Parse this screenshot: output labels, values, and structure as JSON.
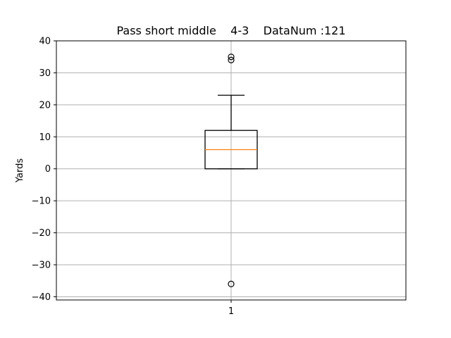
{
  "chart_data": {
    "type": "box",
    "title": "Pass short middle    4-3    DataNum :121",
    "xlabel": "",
    "ylabel": "Yards",
    "ylim": [
      -41,
      40
    ],
    "yticks": [
      -40,
      -30,
      -20,
      -10,
      0,
      10,
      20,
      30,
      40
    ],
    "ytick_labels": [
      "−40",
      "−30",
      "−20",
      "−10",
      "0",
      "10",
      "20",
      "30",
      "40"
    ],
    "grid": true,
    "boxes": [
      {
        "category": "1",
        "whisker_low": 0,
        "q1": 0,
        "median": 6,
        "q3": 12,
        "whisker_high": 23,
        "outliers": [
          35,
          34,
          -36
        ]
      }
    ],
    "colors": {
      "box": "#000000",
      "median": "#ff7f0e",
      "grid": "#b0b0b0",
      "axes": "#000000"
    }
  }
}
